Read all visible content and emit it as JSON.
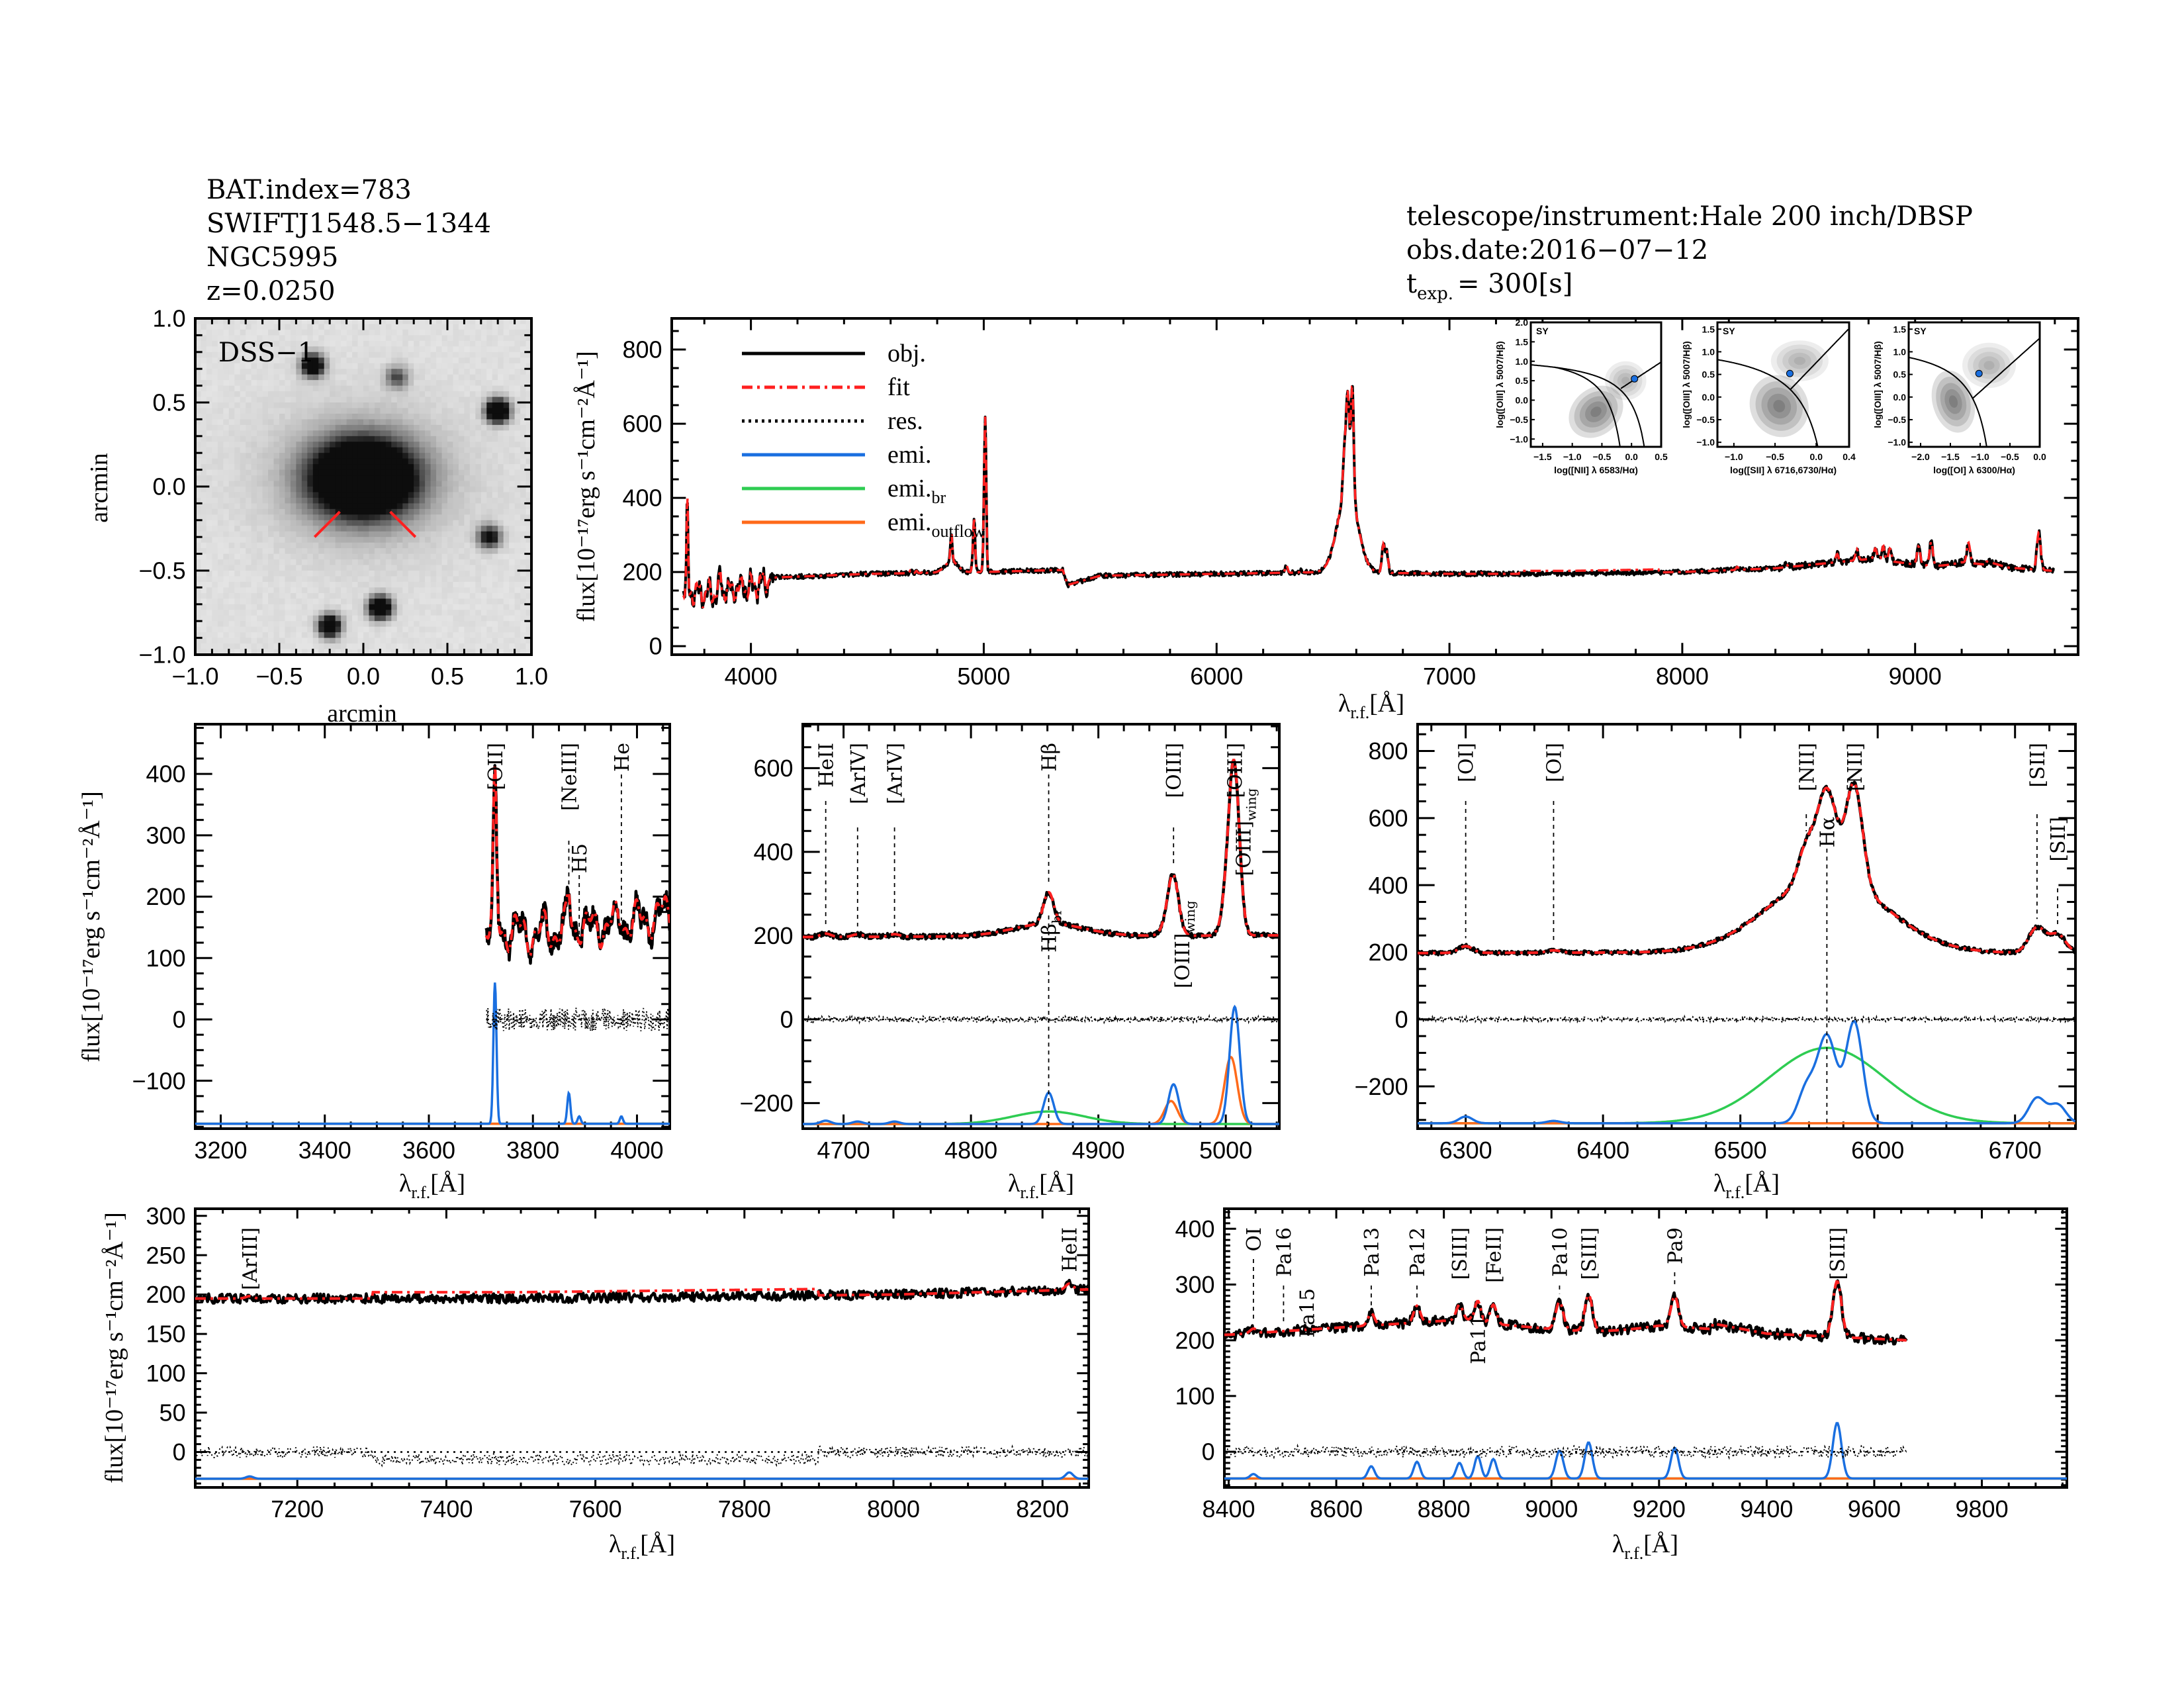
{
  "header_left": [
    "BAT.index=783",
    "SWIFTJ1548.5−1344",
    "NGC5995",
    "z=0.0250"
  ],
  "header_right": {
    "instrument": "telescope/instrument:Hale 200 inch/DBSP",
    "date": "obs.date:2016−07−12",
    "texp_t": "t",
    "texp_sub": "exp.",
    "texp_val": "= 300[s]"
  },
  "labels": {
    "flux": "flux[10⁻¹⁷erg s⁻¹cm⁻²Å⁻¹]",
    "lambda": "λ",
    "lambda_sub": "r.f.",
    "lambda_unit": "[Å]",
    "arcmin_x": "arcmin",
    "arcmin_y": "arcmin",
    "dss": "DSS−1"
  },
  "legend": [
    {
      "label": "obj.",
      "sub": "",
      "color": "#000000",
      "style": "solid"
    },
    {
      "label": "fit",
      "sub": "",
      "color": "#ff2020",
      "style": "dash-dot"
    },
    {
      "label": "res.",
      "sub": "",
      "color": "#000000",
      "style": "dotted"
    },
    {
      "label": "emi.",
      "sub": "",
      "color": "#1a6fe0",
      "style": "solid"
    },
    {
      "label": "emi.",
      "sub": "br",
      "color": "#2ecc52",
      "style": "solid"
    },
    {
      "label": "emi.",
      "sub": "outflow",
      "color": "#ff6a1a",
      "style": "solid"
    }
  ],
  "colors": {
    "obj": "#000000",
    "fit": "#ff2020",
    "narrow": "#1a6fe0",
    "broad": "#2ecc52",
    "outflow": "#ff6a1a",
    "label_red": "#e0302a",
    "sy": "#1a6fe0"
  },
  "chart_data": [
    {
      "id": "image",
      "type": "heatmap",
      "title": "DSS−1",
      "xlabel": "arcmin",
      "ylabel": "arcmin",
      "xlim": [
        -1.0,
        1.0
      ],
      "ylim": [
        -1.0,
        1.0
      ],
      "xticks": [
        "−1.0",
        "−0.5",
        "0.0",
        "0.5",
        "1.0"
      ],
      "yticks": [
        "−1.0",
        "−0.5",
        "0.0",
        "0.5",
        "1.0"
      ],
      "sources": [
        [
          0.0,
          0.05,
          1.0
        ],
        [
          0.8,
          0.45,
          0.9
        ],
        [
          -0.3,
          0.72,
          0.7
        ],
        [
          0.1,
          -0.72,
          0.8
        ],
        [
          -0.2,
          -0.83,
          0.7
        ],
        [
          0.75,
          -0.3,
          0.5
        ],
        [
          0.2,
          0.65,
          0.3
        ]
      ]
    },
    {
      "id": "main",
      "type": "line",
      "xlim": [
        3660,
        9700
      ],
      "ylim": [
        -23,
        884
      ],
      "xticks": [
        4000,
        5000,
        6000,
        7000,
        8000,
        9000
      ],
      "yticks": [
        0,
        200,
        400,
        600,
        800
      ],
      "range": [
        3710,
        9600
      ]
    },
    {
      "id": "oii",
      "type": "line",
      "xlim": [
        3151,
        4063
      ],
      "ylim": [
        -178,
        481
      ],
      "xticks": [
        3200,
        3400,
        3600,
        3800,
        4000
      ],
      "yticks": [
        -100,
        0,
        100,
        200,
        300,
        400
      ],
      "range": [
        3710,
        4063
      ],
      "line_labels": [
        {
          "text": "[OII]",
          "wave": 3727,
          "red": false
        },
        {
          "text": "[NeIII]",
          "wave": 3869,
          "red": true
        },
        {
          "text": "H5",
          "wave": 3889,
          "red": true
        },
        {
          "text": "He",
          "wave": 3970,
          "red": true
        }
      ]
    },
    {
      "id": "hb",
      "type": "line",
      "xlim": [
        4668,
        5042
      ],
      "ylim": [
        -261,
        705
      ],
      "xticks": [
        4700,
        4800,
        4900,
        5000
      ],
      "yticks": [
        -200,
        0,
        200,
        400,
        600
      ],
      "range": [
        4668,
        5042
      ],
      "line_labels": [
        {
          "text": "HeII",
          "wave": 4686,
          "red": false
        },
        {
          "text": "[ArIV]",
          "wave": 4711,
          "red": true
        },
        {
          "text": "[ArIV]",
          "wave": 4740,
          "red": true
        },
        {
          "text": "Hβ",
          "wave": 4861,
          "red": false
        },
        {
          "text": "[OIII]",
          "wave": 4959,
          "red": false
        },
        {
          "text": "[OIII]",
          "wave": 5007,
          "red": false
        }
      ],
      "lower_labels": [
        {
          "text": "Hβ",
          "sub": "br",
          "wave": 4861
        },
        {
          "text": "[OIII]",
          "sub": "wing",
          "wave": 4959
        },
        {
          "text": "[OIII]",
          "sub": "wing",
          "wave": 5007
        }
      ]
    },
    {
      "id": "ha",
      "type": "line",
      "xlim": [
        6265,
        6744
      ],
      "ylim": [
        -326,
        880
      ],
      "xticks": [
        6300,
        6400,
        6500,
        6600,
        6700
      ],
      "yticks": [
        -200,
        0,
        200,
        400,
        600,
        800
      ],
      "range": [
        6265,
        6744
      ],
      "line_labels": [
        {
          "text": "[OI]",
          "wave": 6300,
          "red": false
        },
        {
          "text": "[OI]",
          "wave": 6364,
          "red": false
        },
        {
          "text": "[NII]",
          "wave": 6548,
          "red": false
        },
        {
          "text": "Hα",
          "wave": 6563,
          "red": false
        },
        {
          "text": "[NII]",
          "wave": 6583,
          "red": false
        },
        {
          "text": "[SII]",
          "wave": 6716,
          "red": false
        },
        {
          "text": "[SII]",
          "wave": 6731,
          "red": false
        }
      ]
    },
    {
      "id": "mid",
      "type": "line",
      "xlim": [
        7063,
        8262
      ],
      "ylim": [
        -45,
        309
      ],
      "xticks": [
        7200,
        7400,
        7600,
        7800,
        8000,
        8200
      ],
      "yticks": [
        0,
        50,
        100,
        150,
        200,
        250,
        300
      ],
      "range": [
        7063,
        8262
      ],
      "line_labels": [
        {
          "text": "[ArIII]",
          "wave": 7136,
          "red": true
        },
        {
          "text": "HeII",
          "wave": 8236,
          "red": false
        }
      ]
    },
    {
      "id": "nir",
      "type": "line",
      "xlim": [
        8392,
        9958
      ],
      "ylim": [
        -64,
        436
      ],
      "xticks": [
        8400,
        8600,
        8800,
        9000,
        9200,
        9400,
        9600,
        9800
      ],
      "yticks": [
        0,
        100,
        200,
        300,
        400
      ],
      "range": [
        8392,
        9660
      ],
      "line_labels": [
        {
          "text": "OI",
          "wave": 8446,
          "red": false
        },
        {
          "text": "Pa16",
          "wave": 8502,
          "red": false
        },
        {
          "text": "Pa15",
          "wave": 8545,
          "red": true
        },
        {
          "text": "Pa13",
          "wave": 8665,
          "red": false
        },
        {
          "text": "Pa12",
          "wave": 8750,
          "red": false
        },
        {
          "text": "[SIII]",
          "wave": 8829,
          "red": false
        },
        {
          "text": "Pa11",
          "wave": 8863,
          "red": false
        },
        {
          "text": "[FeII]",
          "wave": 8892,
          "red": false
        },
        {
          "text": "Pa10",
          "wave": 9015,
          "red": false
        },
        {
          "text": "[SIII]",
          "wave": 9069,
          "red": false
        },
        {
          "text": "Pa9",
          "wave": 9229,
          "red": false
        },
        {
          "text": "[SIII]",
          "wave": 9531,
          "red": false
        }
      ]
    },
    {
      "id": "bpt",
      "type": "scatter",
      "panels": [
        {
          "xlabel": "log([NII] λ 6583/Hα)",
          "ylabel": "log([OIII] λ 5007/Hβ)",
          "class": "SY",
          "xlim": [
            -1.7,
            0.5
          ],
          "ylim": [
            -1.2,
            2.0
          ],
          "xticks": [
            "−1.5",
            "−1.0",
            "−0.5",
            "0.0",
            "0.5"
          ],
          "xtickv": [
            -1.5,
            -1.0,
            -0.5,
            0.0,
            0.5
          ],
          "yticks": [
            "−1.0",
            "−0.5",
            "0.0",
            "0.5",
            "1.0",
            "1.5",
            "2.0"
          ],
          "ytickv": [
            -1.0,
            -0.5,
            0.0,
            0.5,
            1.0,
            1.5,
            2.0
          ],
          "point": [
            0.05,
            0.55
          ]
        },
        {
          "xlabel": "log([SII] λ 6716,6730/Hα)",
          "ylabel": "log([OIII] λ 5007/Hβ)",
          "class": "SY",
          "xlim": [
            -1.2,
            0.4
          ],
          "ylim": [
            -1.1,
            1.65
          ],
          "xticks": [
            "−1.0",
            "−0.5",
            "0.0",
            "0.4"
          ],
          "xtickv": [
            -1.0,
            -0.5,
            0.0,
            0.4
          ],
          "yticks": [
            "−1.0",
            "−0.5",
            "0.0",
            "0.5",
            "1.0",
            "1.5"
          ],
          "ytickv": [
            -1.0,
            -0.5,
            0.0,
            0.5,
            1.0,
            1.5
          ],
          "point": [
            -0.32,
            0.52
          ]
        },
        {
          "xlabel": "log([OI] λ 6300/Hα)",
          "ylabel": "log([OIII] λ 5007/Hβ)",
          "class": "SY",
          "xlim": [
            -2.2,
            0.0
          ],
          "ylim": [
            -1.1,
            1.65
          ],
          "xticks": [
            "−2.0",
            "−1.5",
            "−1.0",
            "−0.5",
            "0.0"
          ],
          "xtickv": [
            -2.0,
            -1.5,
            -1.0,
            -0.5,
            0.0
          ],
          "yticks": [
            "−1.0",
            "−0.5",
            "0.0",
            "0.5",
            "1.0",
            "1.5"
          ],
          "ytickv": [
            -1.0,
            -0.5,
            0.0,
            0.5,
            1.0,
            1.5
          ],
          "point": [
            -1.02,
            0.52
          ]
        }
      ]
    }
  ],
  "spectrum": {
    "continuum": [
      [
        3710,
        150
      ],
      [
        3800,
        140
      ],
      [
        3900,
        150
      ],
      [
        4000,
        160
      ],
      [
        4100,
        185
      ],
      [
        4500,
        195
      ],
      [
        5000,
        200
      ],
      [
        5300,
        205
      ],
      [
        5340,
        205
      ],
      [
        5360,
        165
      ],
      [
        5500,
        190
      ],
      [
        6000,
        195
      ],
      [
        6500,
        200
      ],
      [
        7000,
        195
      ],
      [
        7500,
        195
      ],
      [
        8000,
        200
      ],
      [
        8400,
        210
      ],
      [
        8800,
        235
      ],
      [
        9000,
        242
      ],
      [
        9200,
        248
      ],
      [
        9400,
        212
      ],
      [
        9660,
        200
      ]
    ],
    "lines": [
      {
        "wave": 3727,
        "sigma": 3,
        "amp": 230,
        "comp": "narrow"
      },
      {
        "wave": 3869,
        "sigma": 3,
        "amp": 50,
        "comp": "narrow"
      },
      {
        "wave": 3889,
        "sigma": 3,
        "amp": 12,
        "comp": "narrow"
      },
      {
        "wave": 3970,
        "sigma": 3,
        "amp": 12,
        "comp": "narrow"
      },
      {
        "wave": 4686,
        "sigma": 4,
        "amp": 8,
        "comp": "narrow"
      },
      {
        "wave": 4711,
        "sigma": 4,
        "amp": 6,
        "comp": "narrow"
      },
      {
        "wave": 4740,
        "sigma": 4,
        "amp": 6,
        "comp": "narrow"
      },
      {
        "wave": 4861,
        "sigma": 4,
        "amp": 75,
        "comp": "narrow"
      },
      {
        "wave": 4861,
        "sigma": 28,
        "amp": 30,
        "comp": "broad"
      },
      {
        "wave": 4959,
        "sigma": 4,
        "amp": 95,
        "comp": "narrow"
      },
      {
        "wave": 4957,
        "sigma": 5,
        "amp": 55,
        "comp": "outflow"
      },
      {
        "wave": 5007,
        "sigma": 4,
        "amp": 280,
        "comp": "narrow"
      },
      {
        "wave": 5004,
        "sigma": 5,
        "amp": 160,
        "comp": "outflow"
      },
      {
        "wave": 6300,
        "sigma": 5,
        "amp": 20,
        "comp": "narrow"
      },
      {
        "wave": 6364,
        "sigma": 5,
        "amp": 7,
        "comp": "narrow"
      },
      {
        "wave": 6548,
        "sigma": 6,
        "amp": 100,
        "comp": "narrow"
      },
      {
        "wave": 6563,
        "sigma": 7,
        "amp": 260,
        "comp": "narrow"
      },
      {
        "wave": 6563,
        "sigma": 42,
        "amp": 225,
        "comp": "broad"
      },
      {
        "wave": 6583,
        "sigma": 6,
        "amp": 300,
        "comp": "narrow"
      },
      {
        "wave": 6716,
        "sigma": 6,
        "amp": 75,
        "comp": "narrow"
      },
      {
        "wave": 6731,
        "sigma": 6,
        "amp": 55,
        "comp": "narrow"
      },
      {
        "wave": 7136,
        "sigma": 5,
        "amp": 3,
        "comp": "narrow"
      },
      {
        "wave": 8236,
        "sigma": 5,
        "amp": 8,
        "comp": "narrow"
      },
      {
        "wave": 8446,
        "sigma": 6,
        "amp": 8,
        "comp": "narrow"
      },
      {
        "wave": 8665,
        "sigma": 6,
        "amp": 22,
        "comp": "narrow"
      },
      {
        "wave": 8750,
        "sigma": 6,
        "amp": 30,
        "comp": "narrow"
      },
      {
        "wave": 8829,
        "sigma": 6,
        "amp": 28,
        "comp": "narrow"
      },
      {
        "wave": 8863,
        "sigma": 6,
        "amp": 40,
        "comp": "narrow"
      },
      {
        "wave": 8892,
        "sigma": 6,
        "amp": 35,
        "comp": "narrow"
      },
      {
        "wave": 9015,
        "sigma": 7,
        "amp": 50,
        "comp": "narrow"
      },
      {
        "wave": 9069,
        "sigma": 7,
        "amp": 65,
        "comp": "narrow"
      },
      {
        "wave": 9229,
        "sigma": 7,
        "amp": 55,
        "comp": "narrow"
      },
      {
        "wave": 9531,
        "sigma": 8,
        "amp": 100,
        "comp": "narrow"
      }
    ]
  }
}
